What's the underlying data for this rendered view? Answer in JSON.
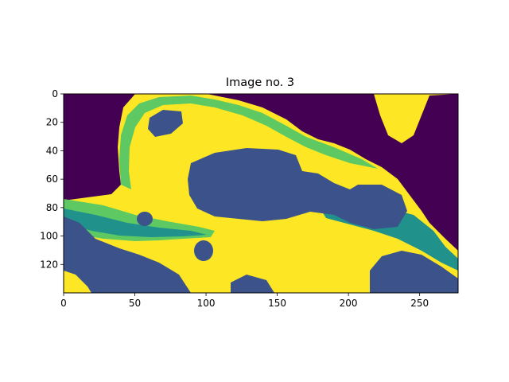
{
  "chart_data": {
    "type": "heatmap",
    "title": "Image no. 3",
    "xlabel": "",
    "ylabel": "",
    "xlim": [
      0,
      277
    ],
    "ylim": [
      140,
      0
    ],
    "x_ticks": [
      "0",
      "50",
      "100",
      "150",
      "200",
      "250"
    ],
    "y_ticks": [
      "0",
      "20",
      "40",
      "60",
      "80",
      "100",
      "120"
    ],
    "grid": false,
    "legend": "none",
    "colormap": [
      "#440154",
      "#3b528b",
      "#21918c",
      "#5ec962",
      "#fde725"
    ],
    "class_levels": [
      0,
      1,
      2,
      3,
      4
    ],
    "regions": [
      {
        "label": "dark_outer_background",
        "class": 0
      },
      {
        "label": "blue_basins",
        "class": 1
      },
      {
        "label": "teal_bands",
        "class": 2
      },
      {
        "label": "green_borders",
        "class": 3
      },
      {
        "label": "yellow_fill",
        "class": 4
      }
    ],
    "background_class": 4
  }
}
